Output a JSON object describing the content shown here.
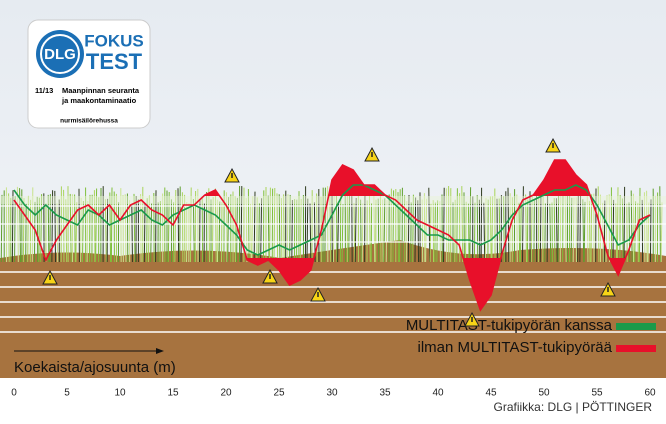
{
  "chart_data": {
    "type": "line",
    "x": [
      0,
      1,
      2,
      3,
      4,
      5,
      6,
      7,
      8,
      9,
      10,
      11,
      12,
      13,
      14,
      15,
      16,
      17,
      18,
      19,
      20,
      21,
      22,
      23,
      24,
      25,
      26,
      27,
      28,
      29,
      30,
      31,
      32,
      33,
      34,
      35,
      36,
      37,
      38,
      39,
      40,
      41,
      42,
      43,
      44,
      45,
      46,
      47,
      48,
      49,
      50,
      51,
      52,
      53,
      54,
      55,
      56,
      57,
      58,
      59,
      60
    ],
    "series": [
      {
        "name": "MULTITAST-tukipyörän kanssa",
        "color": "#1a9a4a",
        "values": [
          188,
          173,
          163,
          173,
          163,
          158,
          153,
          168,
          163,
          153,
          158,
          163,
          168,
          158,
          153,
          163,
          168,
          173,
          168,
          163,
          153,
          143,
          128,
          123,
          128,
          133,
          128,
          133,
          138,
          143,
          163,
          183,
          193,
          193,
          188,
          183,
          173,
          163,
          153,
          143,
          143,
          138,
          138,
          138,
          133,
          138,
          148,
          163,
          173,
          178,
          183,
          188,
          188,
          193,
          188,
          173,
          153,
          133,
          138,
          153,
          163
        ]
      },
      {
        "name": "ilman MULTITAST-tukipyörää",
        "color": "#e8102a",
        "values": [
          178,
          163,
          148,
          118,
          138,
          153,
          168,
          173,
          163,
          173,
          158,
          173,
          178,
          168,
          163,
          153,
          173,
          173,
          183,
          188,
          173,
          153,
          118,
          113,
          118,
          108,
          93,
          98,
          108,
          148,
          198,
          213,
          208,
          193,
          193,
          183,
          178,
          168,
          158,
          153,
          148,
          143,
          133,
          98,
          68,
          83,
          123,
          158,
          178,
          183,
          198,
          218,
          218,
          203,
          193,
          163,
          123,
          103,
          128,
          158,
          163
        ]
      }
    ],
    "xlim": [
      0,
      60
    ],
    "xticks": [
      0,
      5,
      10,
      15,
      20,
      25,
      30,
      35,
      40,
      45,
      50,
      55,
      60
    ],
    "ylim": [
      0,
      240
    ],
    "x_label": "Koekaista/ajosuunta (m)",
    "source": "Grafiikka: DLG | PÖTTINGER"
  },
  "badge": {
    "brand": "DLG",
    "line1": "FOKUS",
    "line2": "TEST",
    "issue": "11/13",
    "subject": [
      "Maanpinnan seuranta",
      "ja maakontaminaatio"
    ],
    "subtitle": "nurmisäilörehussa"
  }
}
